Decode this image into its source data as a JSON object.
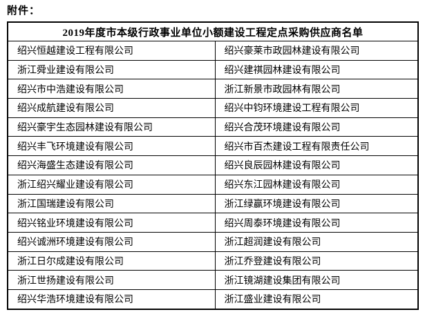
{
  "page": {
    "attachment_label": "附件："
  },
  "table": {
    "title": "2019年度市本级行政事业单位小额建设工程定点采购供应商名单",
    "columns": 2,
    "rows": [
      [
        "绍兴恒越建设工程有限公司",
        "绍兴豪莱市政园林建设有限公司"
      ],
      [
        "浙江舜业建设有限公司",
        "绍兴建祺园林建设有限公司"
      ],
      [
        "绍兴市中浩建设有限公司",
        "浙江新景市政园林有限公司"
      ],
      [
        "绍兴成航建设有限公司",
        "绍兴中钧环境建设工程有限公司"
      ],
      [
        "绍兴豪宇生态园林建设有限公司",
        "绍兴合茂环境建设有限公司"
      ],
      [
        "绍兴丰飞环境建设有限公司",
        "绍兴市百杰建设工程有限责任公司"
      ],
      [
        "绍兴海盛生态建设有限公司",
        "绍兴良辰园林建设有限公司"
      ],
      [
        "浙江绍兴耀业建设有限公司",
        "绍兴东江园林建设有限公司"
      ],
      [
        "浙江国瑞建设有限公司",
        "浙江绿赢环境建设有限公司"
      ],
      [
        "绍兴铭业环境建设有限公司",
        "绍兴周泰环境建设有限公司"
      ],
      [
        "绍兴诚洲环境建设有限公司",
        "浙江超润建设有限公司"
      ],
      [
        "浙江日尔成建设有限公司",
        "浙江乔登建设有限公司"
      ],
      [
        "浙江世扬建设有限公司",
        "浙江镜湖建设集团有限公司"
      ],
      [
        "绍兴华浩环境建设有限公司",
        "浙江盛业建设有限公司"
      ]
    ],
    "colors": {
      "border": "#000000",
      "text": "#000000",
      "background": "#ffffff"
    }
  }
}
